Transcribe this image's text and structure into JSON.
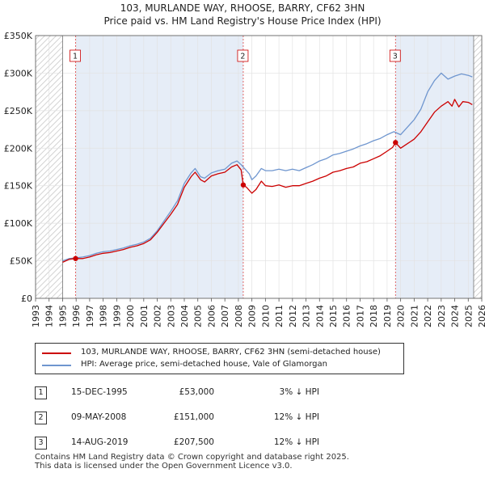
{
  "header": {
    "title_line1": "103, MURLANDE WAY, RHOOSE, BARRY, CF62 3HN",
    "title_line2": "Price paid vs. HM Land Registry's House Price Index (HPI)"
  },
  "colors": {
    "property": "#cc0000",
    "hpi": "#6f96cf",
    "hatch": "#c8c8c8",
    "band": "#e6edf7",
    "grid": "#ffffff",
    "sale_line": "#dd4444"
  },
  "chart_data": {
    "type": "line",
    "title": "Price paid vs. HM Land Registry's House Price Index (HPI)",
    "xlabel": "",
    "ylabel": "",
    "xlim": [
      1993,
      2026
    ],
    "ylim": [
      0,
      350000
    ],
    "x_ticks": [
      1993,
      1994,
      1995,
      1996,
      1997,
      1998,
      1999,
      2000,
      2001,
      2002,
      2003,
      2004,
      2005,
      2006,
      2007,
      2008,
      2009,
      2010,
      2011,
      2012,
      2013,
      2014,
      2015,
      2016,
      2017,
      2018,
      2019,
      2020,
      2021,
      2022,
      2023,
      2024,
      2025,
      2026
    ],
    "y_ticks": [
      {
        "value": 0,
        "label": "£0"
      },
      {
        "value": 50000,
        "label": "£50K"
      },
      {
        "value": 100000,
        "label": "£100K"
      },
      {
        "value": 150000,
        "label": "£150K"
      },
      {
        "value": 200000,
        "label": "£200K"
      },
      {
        "value": 250000,
        "label": "£250K"
      },
      {
        "value": 300000,
        "label": "£300K"
      },
      {
        "value": 350000,
        "label": "£350K"
      }
    ],
    "data_start": 1995.0,
    "data_end": 2025.4,
    "series": [
      {
        "name": "103, MURLANDE WAY, RHOOSE, BARRY, CF62 3HN (semi-detached house)",
        "color": "#cc0000",
        "x": [
          1995.0,
          1995.5,
          1995.96,
          1996.5,
          1997.0,
          1997.5,
          1998.0,
          1998.5,
          1999.0,
          1999.5,
          2000.0,
          2000.5,
          2001.0,
          2001.5,
          2002.0,
          2002.5,
          2003.0,
          2003.5,
          2004.0,
          2004.5,
          2004.8,
          2005.2,
          2005.5,
          2006.0,
          2006.5,
          2007.0,
          2007.5,
          2007.9,
          2008.2,
          2008.36,
          2008.6,
          2009.0,
          2009.3,
          2009.7,
          2010.0,
          2010.5,
          2011.0,
          2011.5,
          2012.0,
          2012.5,
          2013.0,
          2013.5,
          2014.0,
          2014.5,
          2015.0,
          2015.5,
          2016.0,
          2016.5,
          2017.0,
          2017.5,
          2018.0,
          2018.5,
          2019.0,
          2019.4,
          2019.62,
          2020.0,
          2020.5,
          2021.0,
          2021.5,
          2022.0,
          2022.5,
          2023.0,
          2023.5,
          2023.8,
          2024.0,
          2024.3,
          2024.6,
          2025.0,
          2025.3
        ],
        "y": [
          48000,
          52000,
          53000,
          53000,
          55000,
          58000,
          60000,
          61000,
          63000,
          65000,
          68000,
          70000,
          73000,
          78000,
          88000,
          100000,
          112000,
          125000,
          148000,
          162000,
          168000,
          158000,
          155000,
          163000,
          166000,
          168000,
          175000,
          178000,
          171000,
          151000,
          148000,
          140000,
          145000,
          156000,
          150000,
          149000,
          151000,
          148000,
          150000,
          150000,
          153000,
          156000,
          160000,
          163000,
          168000,
          170000,
          173000,
          175000,
          180000,
          182000,
          186000,
          190000,
          196000,
          201000,
          207500,
          200000,
          206000,
          212000,
          222000,
          235000,
          248000,
          256000,
          262000,
          256000,
          265000,
          255000,
          262000,
          261000,
          258000
        ]
      },
      {
        "name": "HPI: Average price, semi-detached house, Vale of Glamorgan",
        "color": "#6f96cf",
        "x": [
          1995.0,
          1995.5,
          1996.0,
          1996.5,
          1997.0,
          1997.5,
          1998.0,
          1998.5,
          1999.0,
          1999.5,
          2000.0,
          2000.5,
          2001.0,
          2001.5,
          2002.0,
          2002.5,
          2003.0,
          2003.5,
          2004.0,
          2004.5,
          2004.8,
          2005.2,
          2005.5,
          2006.0,
          2006.5,
          2007.0,
          2007.5,
          2007.9,
          2008.2,
          2008.5,
          2008.8,
          2009.0,
          2009.3,
          2009.7,
          2010.0,
          2010.5,
          2011.0,
          2011.5,
          2012.0,
          2012.5,
          2013.0,
          2013.5,
          2014.0,
          2014.5,
          2015.0,
          2015.5,
          2016.0,
          2016.5,
          2017.0,
          2017.5,
          2018.0,
          2018.5,
          2019.0,
          2019.5,
          2020.0,
          2020.5,
          2021.0,
          2021.5,
          2022.0,
          2022.5,
          2023.0,
          2023.5,
          2024.0,
          2024.5,
          2025.0,
          2025.3
        ],
        "y": [
          50000,
          53000,
          54000,
          55000,
          57000,
          60000,
          62000,
          63000,
          65000,
          67000,
          70000,
          72000,
          75000,
          80000,
          90000,
          103000,
          116000,
          130000,
          153000,
          167000,
          173000,
          162000,
          160000,
          167000,
          170000,
          172000,
          180000,
          183000,
          178000,
          172000,
          166000,
          158000,
          163000,
          173000,
          170000,
          170000,
          172000,
          170000,
          172000,
          170000,
          174000,
          178000,
          183000,
          186000,
          191000,
          193000,
          196000,
          199000,
          203000,
          206000,
          210000,
          213000,
          218000,
          222000,
          218000,
          228000,
          238000,
          252000,
          275000,
          290000,
          300000,
          292000,
          296000,
          299000,
          297000,
          295000
        ]
      }
    ],
    "annotations": [
      {
        "label": "1",
        "x": 1995.96,
        "y": 53000
      },
      {
        "label": "2",
        "x": 2008.36,
        "y": 151000
      },
      {
        "label": "3",
        "x": 2019.62,
        "y": 207500
      }
    ]
  },
  "legend": {
    "property_label": "103, MURLANDE WAY, RHOOSE, BARRY, CF62 3HN (semi-detached house)",
    "hpi_label": "HPI: Average price, semi-detached house, Vale of Glamorgan"
  },
  "sales": [
    {
      "num": "1",
      "date": "15-DEC-1995",
      "price": "£53,000",
      "hpi": "3% ↓ HPI"
    },
    {
      "num": "2",
      "date": "09-MAY-2008",
      "price": "£151,000",
      "hpi": "12% ↓ HPI"
    },
    {
      "num": "3",
      "date": "14-AUG-2019",
      "price": "£207,500",
      "hpi": "12% ↓ HPI"
    }
  ],
  "footer": {
    "line1": "Contains HM Land Registry data © Crown copyright and database right 2025.",
    "line2": "This data is licensed under the Open Government Licence v3.0."
  }
}
